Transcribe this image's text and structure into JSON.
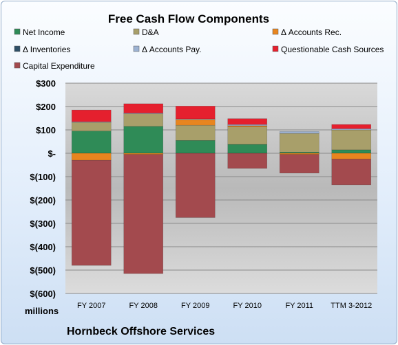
{
  "chart_data": {
    "type": "bar",
    "stacked": true,
    "title": "Free Cash Flow Components",
    "ylabel": "millions",
    "footer": "Hornbeck Offshore Services",
    "categories": [
      "FY 2007",
      "FY 2008",
      "FY 2009",
      "FY 2010",
      "FY 2011",
      "TTM 3-2012"
    ],
    "ylim": [
      -600,
      300
    ],
    "yticks": [
      300,
      200,
      100,
      0,
      -100,
      -200,
      -300,
      -400,
      -500,
      -600
    ],
    "ytick_labels": [
      "$300",
      "$200",
      "$100",
      "$-",
      "$(100)",
      "$(200)",
      "$(300)",
      "$(400)",
      "$(500)",
      "$(600)"
    ],
    "legend_position": "top",
    "grid": true,
    "series": [
      {
        "name": "Net Income",
        "color": "#2f8b57",
        "values": [
          95,
          115,
          55,
          38,
          5,
          15
        ]
      },
      {
        "name": "D&A",
        "color": "#a89f6a",
        "values": [
          38,
          55,
          65,
          75,
          80,
          85
        ]
      },
      {
        "name": "Δ Accounts Rec.",
        "color": "#e8851f",
        "values": [
          -30,
          -5,
          25,
          5,
          -5,
          -25
        ]
      },
      {
        "name": "Δ Inventories",
        "color": "#2e4f66",
        "values": [
          0,
          0,
          0,
          0,
          0,
          0
        ]
      },
      {
        "name": "Δ Accounts Pay.",
        "color": "#9cb2d2",
        "values": [
          2,
          2,
          2,
          5,
          8,
          5
        ]
      },
      {
        "name": "Questionable Cash Sources",
        "color": "#e5202e",
        "values": [
          50,
          40,
          55,
          25,
          0,
          18
        ]
      },
      {
        "name": "Capital Expenditure",
        "color": "#a34a4e",
        "values": [
          -450,
          -510,
          -275,
          -65,
          -80,
          -110
        ]
      }
    ]
  }
}
